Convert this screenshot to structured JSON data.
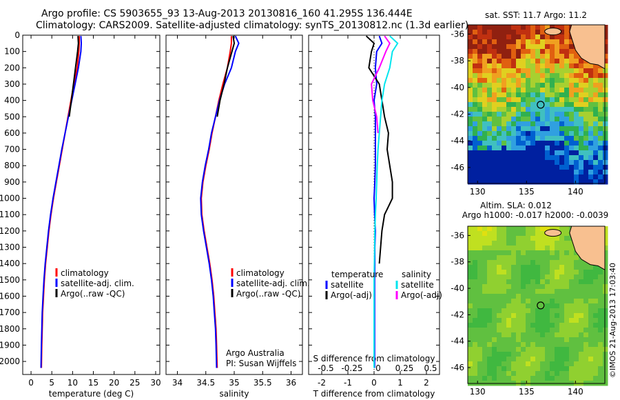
{
  "header": {
    "title_line1": "Argo profile: CS 5903655_93 13-Aug-2013 20130816_160 41.295S 136.444E",
    "title_line2": "Climatology: CARS2009. Satellite-adjusted climatology: synTS_20130812.nc (1.3d earlier)"
  },
  "colors": {
    "climatology": "#ff0000",
    "satellite": "#0000ff",
    "argo": "#000000",
    "sal_satellite": "#00e5ee",
    "sal_argo": "#ff00ff"
  },
  "chart_data": [
    {
      "type": "line",
      "panel": "temperature",
      "xlabel": "temperature (deg C)",
      "ylabel": "",
      "xlim": [
        -2,
        31
      ],
      "ylim": [
        2080,
        0
      ],
      "xticks": [
        0,
        5,
        10,
        15,
        20,
        25,
        30
      ],
      "yticks": [
        0,
        100,
        200,
        300,
        400,
        500,
        600,
        700,
        800,
        900,
        1000,
        1100,
        1200,
        1300,
        1400,
        1500,
        1600,
        1700,
        1800,
        1900,
        2000
      ],
      "grid": false,
      "legend_placement": "middle-center",
      "legend": [
        "climatology",
        "satellite-adj. clim.",
        "Argo(..raw -QC)"
      ],
      "series": [
        {
          "name": "climatology",
          "color": "#ff0000",
          "x": [
            11.6,
            11.6,
            11.5,
            11.1,
            10.3,
            9.6,
            8.9,
            8.2,
            7.5,
            6.8,
            6.1,
            5.4,
            4.8,
            4.3,
            3.9,
            3.5,
            3.2,
            3.0,
            2.8,
            2.7,
            2.6,
            2.5
          ],
          "y": [
            5,
            50,
            100,
            200,
            300,
            400,
            500,
            600,
            700,
            800,
            900,
            1000,
            1100,
            1200,
            1300,
            1400,
            1500,
            1600,
            1700,
            1800,
            1900,
            2040
          ]
        },
        {
          "name": "satellite-adj. clim.",
          "color": "#0000ff",
          "x": [
            12.0,
            12.1,
            12.0,
            11.4,
            10.6,
            9.8,
            9.0,
            8.2,
            7.4,
            6.7,
            6.0,
            5.3,
            4.7,
            4.2,
            3.8,
            3.4,
            3.1,
            2.9,
            2.7,
            2.6,
            2.5,
            2.4
          ],
          "y": [
            5,
            50,
            100,
            200,
            300,
            400,
            500,
            600,
            700,
            800,
            900,
            1000,
            1100,
            1200,
            1300,
            1400,
            1500,
            1600,
            1700,
            1800,
            1900,
            2040
          ]
        },
        {
          "name": "Argo(..raw -QC)",
          "color": "#000000",
          "x": [
            11.3,
            11.4,
            11.2,
            10.7,
            10.2,
            9.7,
            9.2
          ],
          "y": [
            5,
            50,
            100,
            200,
            300,
            400,
            500
          ]
        }
      ]
    },
    {
      "type": "line",
      "panel": "salinity",
      "xlabel": "salinity",
      "xlim": [
        33.8,
        36.2
      ],
      "ylim": [
        2080,
        0
      ],
      "xticks": [
        34,
        34.5,
        35,
        35.5,
        36
      ],
      "grid": false,
      "legend_placement": "middle-center",
      "legend": [
        "climatology",
        "satellite-adj. clim.",
        "Argo(..raw -QC)"
      ],
      "annotation": [
        "Argo Australia",
        "PI: Susan Wijffels"
      ],
      "series": [
        {
          "name": "climatology",
          "color": "#ff0000",
          "x": [
            34.95,
            34.95,
            34.93,
            34.88,
            34.8,
            34.73,
            34.67,
            34.61,
            34.56,
            34.5,
            34.45,
            34.42,
            34.43,
            34.47,
            34.52,
            34.57,
            34.61,
            34.64,
            34.66,
            34.68,
            34.69,
            34.7
          ],
          "y": [
            5,
            50,
            100,
            200,
            300,
            400,
            500,
            600,
            700,
            800,
            900,
            1000,
            1100,
            1200,
            1300,
            1400,
            1500,
            1600,
            1700,
            1800,
            1900,
            2040
          ]
        },
        {
          "name": "satellite-adj. clim.",
          "color": "#0000ff",
          "x": [
            35.02,
            35.08,
            35.02,
            34.95,
            34.83,
            34.74,
            34.67,
            34.6,
            34.55,
            34.49,
            34.44,
            34.41,
            34.42,
            34.46,
            34.51,
            34.56,
            34.6,
            34.63,
            34.65,
            34.67,
            34.68,
            34.69
          ],
          "y": [
            5,
            50,
            100,
            200,
            300,
            400,
            500,
            600,
            700,
            800,
            900,
            1000,
            1100,
            1200,
            1300,
            1400,
            1500,
            1600,
            1700,
            1800,
            1900,
            2040
          ]
        },
        {
          "name": "Argo(..raw -QC)",
          "color": "#000000",
          "x": [
            34.98,
            35.0,
            34.96,
            34.88,
            34.82,
            34.75,
            34.7
          ],
          "y": [
            5,
            50,
            100,
            200,
            300,
            400,
            500
          ]
        }
      ]
    },
    {
      "type": "line",
      "panel": "difference",
      "xlabel": "T difference from climatology",
      "top_label": "S difference from climatology",
      "xlim": [
        -2.5,
        2.5
      ],
      "xticks": [
        -2,
        -1,
        0,
        1,
        2
      ],
      "top_ticks": [
        "-0.5",
        "-0.25",
        "0",
        "0.25",
        "0.5"
      ],
      "ylim": [
        2080,
        0
      ],
      "grid": false,
      "legend_placement": "middle-center",
      "legend_temp": {
        "header": "temperature",
        "items": [
          "satellite",
          "Argo(-adj)"
        ]
      },
      "legend_sal": {
        "header": "salinity",
        "items": [
          "satellite",
          "Argo(-adj)"
        ]
      },
      "series": [
        {
          "name": "satellite",
          "color": "#0000ff",
          "x": [
            0.2,
            0.3,
            0.1,
            0.05,
            0.1,
            0.0,
            0.05,
            0.05,
            0.05,
            0.05,
            0.03,
            0.0,
            0.02,
            0.05,
            0.03,
            0.03,
            0.02,
            0.02,
            0.02,
            0.02,
            0.02,
            0.02
          ],
          "y": [
            5,
            50,
            100,
            200,
            300,
            400,
            500,
            600,
            700,
            800,
            900,
            1000,
            1100,
            1200,
            1300,
            1400,
            1500,
            1600,
            1700,
            1800,
            1900,
            2040
          ]
        },
        {
          "name": "Argo(-adj)",
          "color": "#000000",
          "x": [
            -0.3,
            0.0,
            -0.1,
            -0.2,
            0.2,
            0.3,
            0.4,
            0.55,
            0.5,
            0.6,
            0.7,
            0.7,
            0.55,
            0.4,
            0.3,
            0.25,
            0.2
          ],
          "y": [
            5,
            50,
            100,
            200,
            300,
            400,
            500,
            600,
            700,
            800,
            900,
            1000,
            1050,
            1100,
            1200,
            1300,
            1400
          ]
        },
        {
          "name": "satellite",
          "color": "#00e5ee",
          "x": [
            0.6,
            0.9,
            0.7,
            0.6,
            0.4,
            0.3,
            0.25,
            0.2,
            0.15,
            0.12,
            0.1,
            0.08,
            0.05,
            0.03,
            0.02,
            0.01,
            0.0,
            0.0,
            0.0,
            0.0,
            0.0,
            0.0
          ],
          "y": [
            5,
            50,
            100,
            200,
            300,
            400,
            500,
            600,
            700,
            800,
            900,
            1000,
            1100,
            1200,
            1300,
            1400,
            1500,
            1600,
            1700,
            1800,
            1900,
            2040
          ]
        },
        {
          "name": "Argo(-adj)",
          "color": "#ff00ff",
          "x": [
            0.4,
            0.6,
            0.45,
            0.2,
            -0.1,
            -0.05,
            0.1,
            0.15
          ],
          "y": [
            5,
            50,
            100,
            200,
            300,
            400,
            500,
            600
          ]
        }
      ]
    },
    {
      "type": "heatmap",
      "panel": "sst_map",
      "title": "sat. SST: 11.7 Argo: 11.2",
      "xticks": [
        130,
        135,
        140
      ],
      "yticks": [
        -36,
        -38,
        -40,
        -42,
        -44,
        -46
      ],
      "xlim": [
        129,
        143
      ],
      "ylim": [
        -47.2,
        -35.3
      ],
      "marker": {
        "lon": 136.444,
        "lat": -41.295
      }
    },
    {
      "type": "heatmap",
      "panel": "sla_map",
      "title_line1": "Altim. SLA: 0.012",
      "title_line2": "Argo h1000: -0.017 h2000: -0.0039",
      "xticks": [
        130,
        135,
        140
      ],
      "yticks": [
        -36,
        -38,
        -40,
        -42,
        -44,
        -46
      ],
      "xlim": [
        129,
        143
      ],
      "ylim": [
        -47.2,
        -35.3
      ],
      "marker": {
        "lon": 136.444,
        "lat": -41.295
      }
    }
  ],
  "credit": "©IMOS 21-Aug-2013 17:03:40"
}
